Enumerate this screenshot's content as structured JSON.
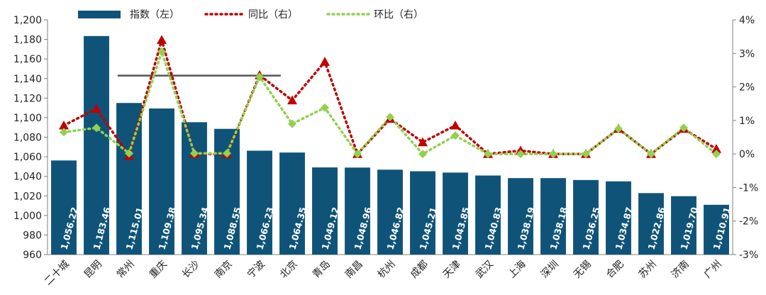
{
  "chart_data": {
    "type": "bar",
    "categories": [
      "二十城",
      "昆明",
      "常州",
      "重庆",
      "长沙",
      "南京",
      "宁波",
      "北京",
      "青岛",
      "南昌",
      "杭州",
      "成都",
      "天津",
      "武汉",
      "上海",
      "深圳",
      "无锡",
      "合肥",
      "苏州",
      "济南",
      "广州"
    ],
    "series": [
      {
        "name": "指数（左）",
        "type": "bar",
        "axis": "left",
        "values": [
          1056.22,
          1183.46,
          1115.01,
          1109.38,
          1095.34,
          1088.55,
          1066.23,
          1064.35,
          1049.12,
          1048.96,
          1046.82,
          1045.21,
          1043.85,
          1040.83,
          1038.19,
          1038.18,
          1036.25,
          1034.87,
          1022.86,
          1019.7,
          1010.91
        ],
        "labels": [
          "1,056.22",
          "1,183.46",
          "1,115.01",
          "1,109.38",
          "1,095.34",
          "1,088.55",
          "1,066.23",
          "1,064.35",
          "1,049.12",
          "1,048.96",
          "1,046.82",
          "1,045.21",
          "1,043.85",
          "1,040.83",
          "1,038.19",
          "1,038.18",
          "1,036.25",
          "1,034.87",
          "1,022.86",
          "1,019.70",
          "1,010.91"
        ]
      },
      {
        "name": "同比（右）",
        "type": "line",
        "axis": "right",
        "unit": "%",
        "values": [
          0.85,
          1.35,
          -0.05,
          3.4,
          0.0,
          0.0,
          2.35,
          1.6,
          2.75,
          0.0,
          1.05,
          0.35,
          0.85,
          0.0,
          0.1,
          0.0,
          0.0,
          0.75,
          0.0,
          0.75,
          0.15
        ]
      },
      {
        "name": "环比（右）",
        "type": "line",
        "axis": "right",
        "unit": "%",
        "values": [
          0.65,
          0.78,
          0.02,
          3.05,
          0.02,
          0.02,
          2.3,
          0.9,
          1.38,
          0.0,
          1.1,
          0.0,
          0.55,
          0.0,
          0.0,
          0.0,
          0.0,
          0.75,
          0.0,
          0.78,
          0.0
        ]
      }
    ],
    "y_left": {
      "min": 960,
      "max": 1200,
      "step": 20,
      "ticks": [
        "960",
        "980",
        "1,000",
        "1,020",
        "1,040",
        "1,060",
        "1,080",
        "1,100",
        "1,120",
        "1,140",
        "1,160",
        "1,180",
        "1,200"
      ]
    },
    "y_right": {
      "min": -3,
      "max": 4,
      "step": 1,
      "ticks": [
        "-3%",
        "-2%",
        "-1%",
        "0%",
        "1%",
        "2%",
        "3%",
        "4%"
      ]
    },
    "reference_line": {
      "value": 1143,
      "from_index": 2,
      "to_index": 7,
      "color": "#555555"
    },
    "legend_position": "top",
    "grid": false,
    "colors": {
      "bar": "#0f5478",
      "yoy": "#c00000",
      "mom": "#92d050"
    }
  }
}
